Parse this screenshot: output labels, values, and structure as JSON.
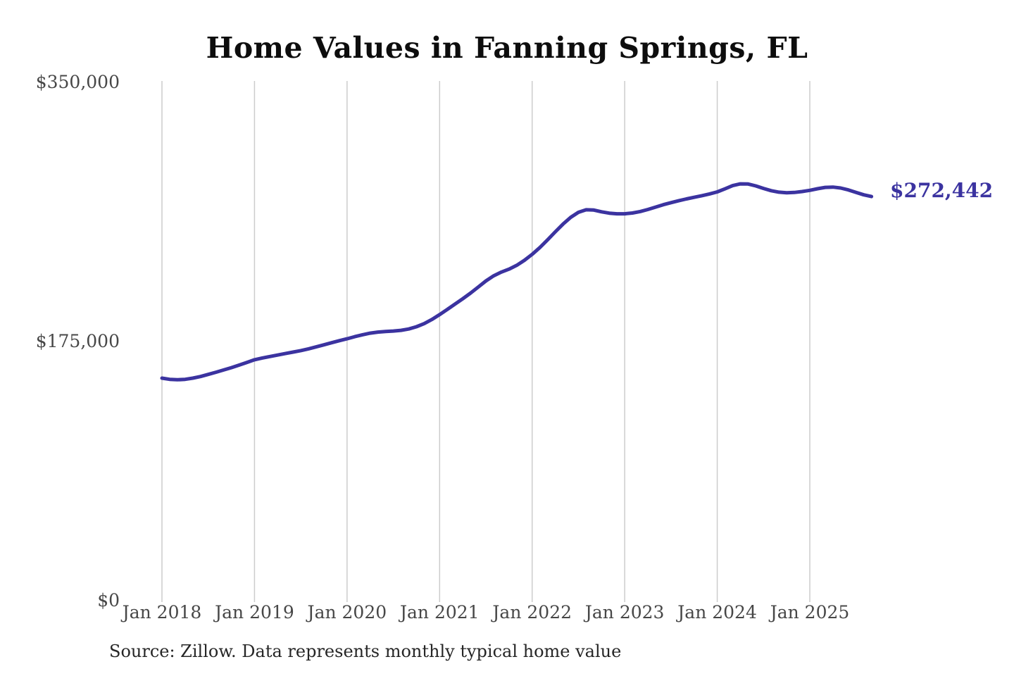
{
  "chart_data": {
    "type": "line",
    "title": "Home Values in Fanning Springs, FL",
    "source": "Source: Zillow. Data represents monthly typical home value",
    "end_label": "$272,442",
    "latest_value": 272442,
    "line_color": "#3b33a0",
    "grid_color": "#cccccc",
    "tick_label_color": "#474747",
    "ylim": [
      0,
      350000
    ],
    "grid": "vertical-only",
    "legend": "none",
    "y_ticks": [
      {
        "label": "$350,000",
        "value": 350000
      },
      {
        "label": "$175,000",
        "value": 175000
      },
      {
        "label": "$0",
        "value": 0
      }
    ],
    "x_ticks": [
      "Jan 2018",
      "Jan 2019",
      "Jan 2020",
      "Jan 2021",
      "Jan 2022",
      "Jan 2023",
      "Jan 2024",
      "Jan 2025"
    ],
    "series": [
      {
        "name": "Monthly typical home value",
        "months": [
          "2018-01",
          "2018-02",
          "2018-03",
          "2018-04",
          "2018-05",
          "2018-06",
          "2018-07",
          "2018-08",
          "2018-09",
          "2018-10",
          "2018-11",
          "2018-12",
          "2019-01",
          "2019-02",
          "2019-03",
          "2019-04",
          "2019-05",
          "2019-06",
          "2019-07",
          "2019-08",
          "2019-09",
          "2019-10",
          "2019-11",
          "2019-12",
          "2020-01",
          "2020-02",
          "2020-03",
          "2020-04",
          "2020-05",
          "2020-06",
          "2020-07",
          "2020-08",
          "2020-09",
          "2020-10",
          "2020-11",
          "2020-12",
          "2021-01",
          "2021-02",
          "2021-03",
          "2021-04",
          "2021-05",
          "2021-06",
          "2021-07",
          "2021-08",
          "2021-09",
          "2021-10",
          "2021-11",
          "2021-12",
          "2022-01",
          "2022-02",
          "2022-03",
          "2022-04",
          "2022-05",
          "2022-06",
          "2022-07",
          "2022-08",
          "2022-09",
          "2022-10",
          "2022-11",
          "2022-12",
          "2023-01",
          "2023-02",
          "2023-03",
          "2023-04",
          "2023-05",
          "2023-06",
          "2023-07",
          "2023-08",
          "2023-09",
          "2023-10",
          "2023-11",
          "2023-12",
          "2024-01",
          "2024-02",
          "2024-03",
          "2024-04",
          "2024-05",
          "2024-06",
          "2024-07",
          "2024-08",
          "2024-09",
          "2024-10",
          "2024-11",
          "2024-12",
          "2025-01",
          "2025-02",
          "2025-03",
          "2025-04",
          "2025-05",
          "2025-06",
          "2025-07",
          "2025-08",
          "2025-09"
        ],
        "values": [
          149800,
          149000,
          148700,
          149000,
          149800,
          150900,
          152300,
          153800,
          155300,
          156900,
          158600,
          160400,
          162200,
          163400,
          164400,
          165400,
          166400,
          167400,
          168400,
          169600,
          170900,
          172300,
          173700,
          175100,
          176400,
          177800,
          179100,
          180200,
          180900,
          181300,
          181600,
          182100,
          183000,
          184500,
          186600,
          189400,
          192700,
          196200,
          199800,
          203400,
          207200,
          211300,
          215400,
          218900,
          221400,
          223400,
          226000,
          229400,
          233400,
          238000,
          243200,
          248600,
          253800,
          258400,
          261800,
          263500,
          263300,
          262100,
          261200,
          260800,
          260800,
          261300,
          262300,
          263700,
          265300,
          266900,
          268300,
          269600,
          270800,
          271900,
          273000,
          274200,
          275600,
          277600,
          279800,
          281000,
          280900,
          279600,
          277900,
          276400,
          275400,
          275000,
          275200,
          275800,
          276600,
          277700,
          278600,
          278800,
          278200,
          276900,
          275200,
          273600,
          272442
        ]
      }
    ]
  }
}
